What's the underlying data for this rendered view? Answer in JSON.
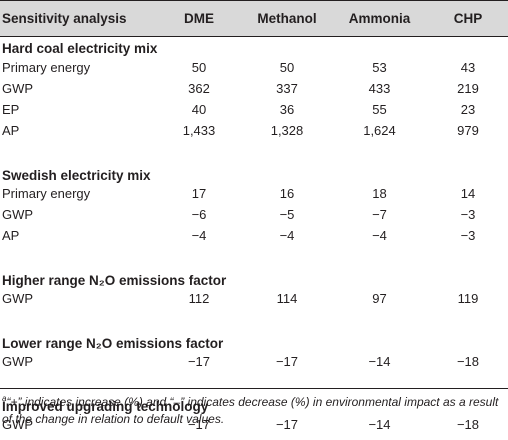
{
  "table": {
    "headers": [
      "Sensitivity analysis",
      "DME",
      "Methanol",
      "Ammonia",
      "CHP"
    ],
    "sections": [
      {
        "title": "Hard coal electricity mix",
        "rows": [
          {
            "label": "Primary energy",
            "values": [
              "50",
              "50",
              "53",
              "43"
            ]
          },
          {
            "label": "GWP",
            "values": [
              "362",
              "337",
              "433",
              "219"
            ]
          },
          {
            "label": "EP",
            "values": [
              "40",
              "36",
              "55",
              "23"
            ]
          },
          {
            "label": "AP",
            "values": [
              "1,433",
              "1,328",
              "1,624",
              "979"
            ]
          }
        ]
      },
      {
        "title": "Swedish electricity mix",
        "rows": [
          {
            "label": "Primary energy",
            "values": [
              "17",
              "16",
              "18",
              "14"
            ]
          },
          {
            "label": "GWP",
            "values": [
              "−6",
              "−5",
              "−7",
              "−3"
            ]
          },
          {
            "label": "AP",
            "values": [
              "−4",
              "−4",
              "−4",
              "−3"
            ]
          }
        ]
      },
      {
        "title": "Higher range N₂O emissions factor",
        "rows": [
          {
            "label": "GWP",
            "values": [
              "112",
              "114",
              "97",
              "119"
            ]
          }
        ]
      },
      {
        "title": "Lower range N₂O emissions factor",
        "rows": [
          {
            "label": "GWP",
            "values": [
              "−17",
              "−17",
              "−14",
              "−18"
            ]
          }
        ]
      },
      {
        "title": "Improved upgrading technology",
        "rows": [
          {
            "label": "GWP",
            "values": [
              "−17",
              "−17",
              "−14",
              "−18"
            ]
          }
        ]
      }
    ],
    "footnote_marker": "a",
    "footnote": "“+” indicates increase (%) and “–” indicates decrease (%) in environmental impact as a result of the change in relation to default values."
  }
}
